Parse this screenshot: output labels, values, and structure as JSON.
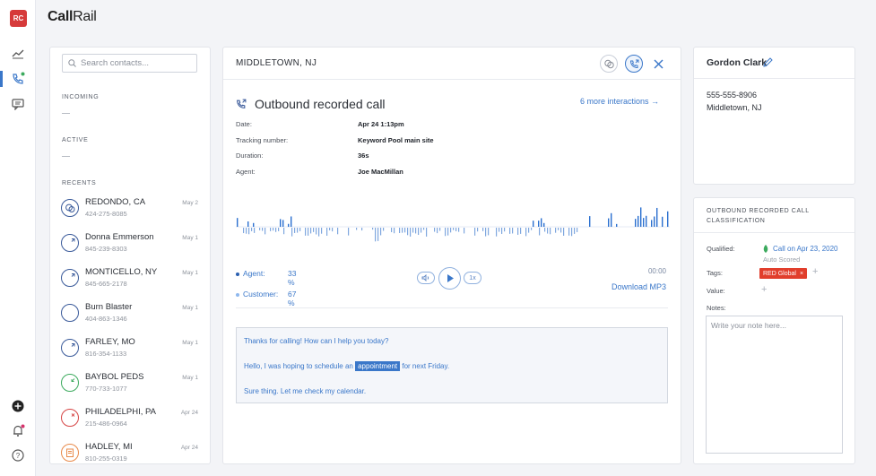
{
  "app": {
    "logo_initials": "RC",
    "brand_bold": "Call",
    "brand_rest": "Rail"
  },
  "colors": {
    "accent": "#3a77c9",
    "brand_red": "#d63a3a",
    "tag_red": "#e13e2c",
    "green": "#3caa5e"
  },
  "contacts_panel": {
    "search_placeholder": "Search contacts...",
    "incoming_label": "INCOMING",
    "active_label": "ACTIVE",
    "recents_label": "RECENTS",
    "recents": [
      {
        "name": "REDONDO, CA",
        "phone": "424-275-8085",
        "date": "May 2",
        "icon": "chat-bubble-icon",
        "color": "#3a5a9a"
      },
      {
        "name": "Donna Emmerson",
        "phone": "845-239-8303",
        "date": "May 1",
        "icon": "phone-outbound-icon",
        "color": "#3a5a9a"
      },
      {
        "name": "MONTICELLO, NY",
        "phone": "845-665-2178",
        "date": "May 1",
        "icon": "phone-outbound-icon",
        "color": "#3a5a9a"
      },
      {
        "name": "Burn Blaster",
        "phone": "404-863-1346",
        "date": "May 1",
        "icon": "phone-icon",
        "color": "#3a5a9a"
      },
      {
        "name": "FARLEY, MO",
        "phone": "816-354-1133",
        "date": "May 1",
        "icon": "phone-outbound-icon",
        "color": "#3a5a9a"
      },
      {
        "name": "BAYBOL PEDS",
        "phone": "770-733-1077",
        "date": "May 1",
        "icon": "phone-inbound-icon",
        "color": "#3caa5e"
      },
      {
        "name": "PHILADELPHI, PA",
        "phone": "215-486-0964",
        "date": "Apr 24",
        "icon": "phone-missed-icon",
        "color": "#d64545"
      },
      {
        "name": "HADLEY, MI",
        "phone": "810-255-0319",
        "date": "Apr 24",
        "icon": "form-icon",
        "color": "#e88a4a"
      }
    ]
  },
  "interaction": {
    "location": "MIDDLETOWN, NJ",
    "title": "Outbound recorded call",
    "more_link": "6 more interactions →",
    "fields": [
      {
        "key": "Date:",
        "value": "Apr 24 1:13pm"
      },
      {
        "key": "Tracking number:",
        "value": "Keyword Pool main site"
      },
      {
        "key": "Duration:",
        "value": "36s"
      },
      {
        "key": "Agent:",
        "value": "Joe MacMillan"
      }
    ],
    "agent_label": "Agent:",
    "agent_pct": "33 %",
    "customer_label": "Customer:",
    "customer_pct": "67 %",
    "speed": "1x",
    "playback_time": "00:00",
    "download_label": "Download MP3",
    "transcript": {
      "line1": "Thanks for calling! How can I help you today?",
      "line2_pre": "Hello, I was hoping to schedule an",
      "line2_hl": "appointment",
      "line2_post": "for next Friday.",
      "line3": "Sure thing. Let me check my calendar."
    }
  },
  "contact_details": {
    "name": "Gordon Clark",
    "phone": "555-555-8906",
    "location": "Middletown, NJ"
  },
  "classification": {
    "title": "OUTBOUND RECORDED CALL CLASSIFICATION",
    "qualified_label": "Qualified:",
    "qualified_value": "Call on Apr 23, 2020",
    "qualified_sub": "Auto Scored",
    "tags_label": "Tags:",
    "tag": "RED Global",
    "value_label": "Value:",
    "notes_label": "Notes:",
    "notes_placeholder": "Write your note here..."
  }
}
